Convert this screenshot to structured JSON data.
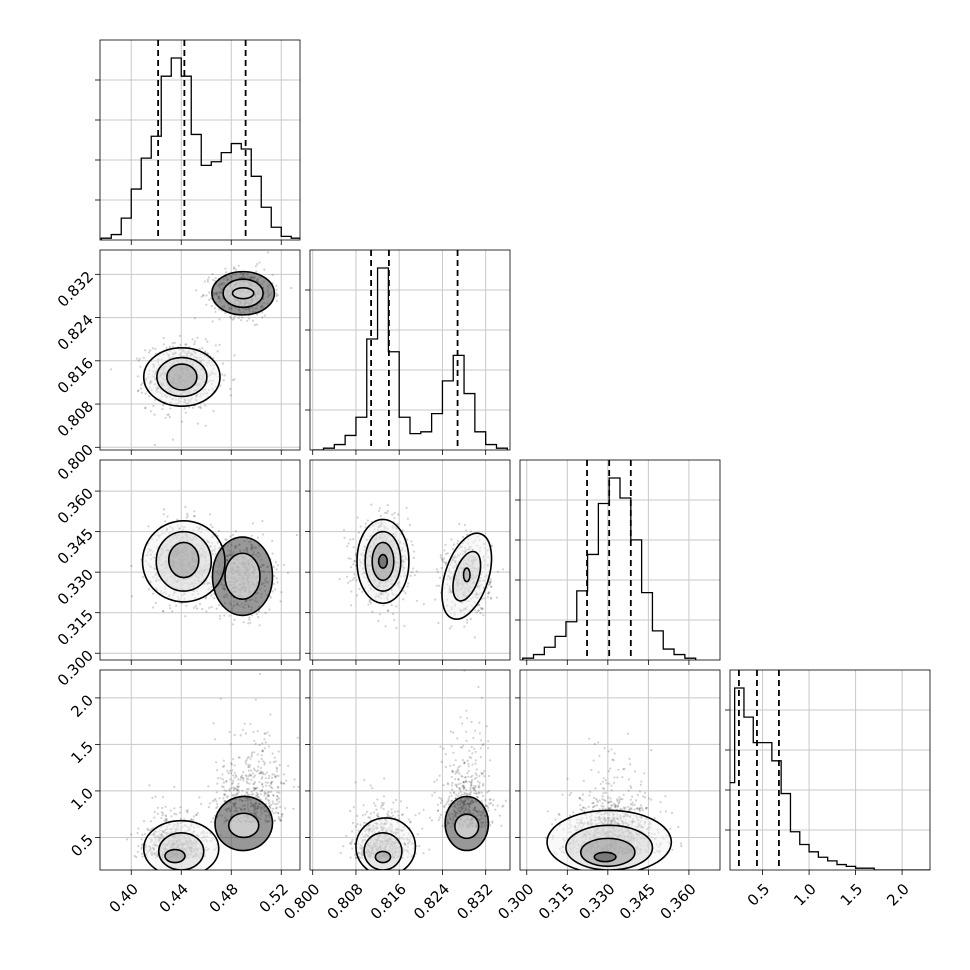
{
  "chart_data": {
    "type": "corner",
    "grid": true,
    "parameters": [
      {
        "key": "p0",
        "range": [
          0.375,
          0.535
        ],
        "ticks": [
          0.4,
          0.44,
          0.48,
          0.52
        ],
        "tick_labels": [
          "0.40",
          "0.44",
          "0.48",
          "0.52"
        ]
      },
      {
        "key": "p1",
        "range": [
          0.7995,
          0.8365
        ],
        "ticks": [
          0.8,
          0.808,
          0.816,
          0.824,
          0.832
        ],
        "tick_labels": [
          "0.800",
          "0.808",
          "0.816",
          "0.824",
          "0.832"
        ]
      },
      {
        "key": "p2",
        "range": [
          0.2975,
          0.3715
        ],
        "ticks": [
          0.3,
          0.315,
          0.33,
          0.345,
          0.36
        ],
        "tick_labels": [
          "0.300",
          "0.315",
          "0.330",
          "0.345",
          "0.360"
        ]
      },
      {
        "key": "p3",
        "range": [
          0.15,
          2.3
        ],
        "ticks": [
          0.5,
          1.0,
          1.5,
          2.0
        ],
        "tick_labels": [
          "0.5",
          "1.0",
          "1.5",
          "2.0"
        ]
      }
    ],
    "diagonal": [
      {
        "param": 0,
        "hist_x": [
          0.38,
          0.388,
          0.396,
          0.404,
          0.412,
          0.42,
          0.428,
          0.436,
          0.444,
          0.452,
          0.46,
          0.468,
          0.476,
          0.484,
          0.492,
          0.5,
          0.508,
          0.516,
          0.524,
          0.532
        ],
        "hist_y": [
          1,
          3,
          12,
          28,
          45,
          57,
          90,
          100,
          90,
          58,
          41,
          43,
          48,
          53,
          50,
          35,
          18,
          7,
          2,
          1
        ],
        "quantiles": [
          0.4215,
          0.4425,
          0.4915
        ]
      },
      {
        "param": 1,
        "hist_x": [
          0.801,
          0.803,
          0.805,
          0.807,
          0.809,
          0.811,
          0.813,
          0.815,
          0.817,
          0.819,
          0.821,
          0.823,
          0.825,
          0.827,
          0.829,
          0.831,
          0.833,
          0.835
        ],
        "hist_y": [
          0,
          1,
          3,
          8,
          18,
          61,
          100,
          54,
          18,
          9,
          10,
          20,
          38,
          52,
          31,
          10,
          3,
          1
        ],
        "quantiles": [
          0.8108,
          0.8141,
          0.8268
        ]
      },
      {
        "param": 2,
        "hist_x": [
          0.3005,
          0.3045,
          0.3085,
          0.3125,
          0.3165,
          0.3205,
          0.3245,
          0.3285,
          0.3325,
          0.3365,
          0.3405,
          0.3445,
          0.3485,
          0.3525,
          0.3565,
          0.3605
        ],
        "hist_y": [
          1,
          3,
          7,
          13,
          21,
          38,
          58,
          86,
          100,
          89,
          66,
          37,
          16,
          6,
          3,
          1
        ],
        "quantiles": [
          0.3223,
          0.3305,
          0.3385
        ]
      },
      {
        "param": 3,
        "hist_x": [
          0.15,
          0.25,
          0.35,
          0.45,
          0.55,
          0.65,
          0.75,
          0.85,
          0.95,
          1.05,
          1.15,
          1.25,
          1.35,
          1.45,
          1.55,
          1.65,
          1.75,
          1.85,
          1.95,
          2.05,
          2.15,
          2.25
        ],
        "hist_y": [
          48,
          100,
          84,
          70,
          70,
          60,
          42,
          21,
          14,
          10,
          7,
          5,
          3,
          2,
          1,
          1,
          0,
          0,
          0,
          0,
          0,
          0
        ],
        "quantiles": [
          0.246,
          0.44,
          0.676
        ]
      }
    ],
    "pairs": [
      {
        "x_param": 0,
        "y_param": 1,
        "modes": [
          {
            "cx": 0.4405,
            "cy": 0.813,
            "sx": 0.014,
            "sy": 0.003,
            "w": 0.6
          },
          {
            "cx": 0.4895,
            "cy": 0.8285,
            "sx": 0.012,
            "sy": 0.0022,
            "w": 0.4
          }
        ],
        "contours": [
          {
            "cx": 0.4405,
            "cy": 0.813,
            "rx": 0.0305,
            "ry": 0.0054
          },
          {
            "cx": 0.4405,
            "cy": 0.813,
            "rx": 0.02,
            "ry": 0.0036
          },
          {
            "cx": 0.4405,
            "cy": 0.813,
            "rx": 0.012,
            "ry": 0.0024
          },
          {
            "cx": 0.4895,
            "cy": 0.8285,
            "rx": 0.025,
            "ry": 0.004
          },
          {
            "cx": 0.4895,
            "cy": 0.8285,
            "rx": 0.016,
            "ry": 0.0026
          },
          {
            "cx": 0.4895,
            "cy": 0.8285,
            "rx": 0.0085,
            "ry": 0.001
          }
        ]
      },
      {
        "x_param": 0,
        "y_param": 2,
        "modes": [
          {
            "cx": 0.442,
            "cy": 0.334,
            "sx": 0.014,
            "sy": 0.007,
            "w": 0.6
          },
          {
            "cx": 0.489,
            "cy": 0.3285,
            "sx": 0.012,
            "sy": 0.007,
            "w": 0.4
          }
        ],
        "contours": [
          {
            "cx": 0.442,
            "cy": 0.334,
            "rx": 0.033,
            "ry": 0.015
          },
          {
            "cx": 0.442,
            "cy": 0.334,
            "rx": 0.022,
            "ry": 0.011
          },
          {
            "cx": 0.442,
            "cy": 0.3345,
            "rx": 0.012,
            "ry": 0.0065
          },
          {
            "cx": 0.489,
            "cy": 0.3285,
            "rx": 0.024,
            "ry": 0.0145
          },
          {
            "cx": 0.489,
            "cy": 0.3285,
            "rx": 0.014,
            "ry": 0.0085
          }
        ]
      },
      {
        "x_param": 1,
        "y_param": 2,
        "modes": [
          {
            "cx": 0.813,
            "cy": 0.334,
            "sx": 0.0024,
            "sy": 0.007,
            "w": 0.6
          },
          {
            "cx": 0.8285,
            "cy": 0.3285,
            "sx": 0.0022,
            "sy": 0.007,
            "w": 0.4
          }
        ],
        "contours": [
          {
            "cx": 0.813,
            "cy": 0.334,
            "rx": 0.0048,
            "ry": 0.0155
          },
          {
            "cx": 0.813,
            "cy": 0.334,
            "rx": 0.0033,
            "ry": 0.011
          },
          {
            "cx": 0.813,
            "cy": 0.334,
            "rx": 0.002,
            "ry": 0.007
          },
          {
            "cx": 0.813,
            "cy": 0.334,
            "rx": 0.0008,
            "ry": 0.0025
          },
          {
            "cx": 0.8285,
            "cy": 0.3285,
            "rx": 0.004,
            "ry": 0.0165,
            "rotate": 18
          },
          {
            "cx": 0.8285,
            "cy": 0.3285,
            "rx": 0.0022,
            "ry": 0.0095,
            "rotate": 18
          },
          {
            "cx": 0.8285,
            "cy": 0.329,
            "rx": 0.0006,
            "ry": 0.0025
          }
        ]
      },
      {
        "x_param": 0,
        "y_param": 3,
        "modes": [
          {
            "cx": 0.435,
            "cy": 0.35,
            "sx": 0.012,
            "sy": 0.18,
            "w": 0.6
          },
          {
            "cx": 0.495,
            "cy": 0.8,
            "sx": 0.015,
            "sy": 0.35,
            "w": 0.4
          }
        ],
        "contours": [
          {
            "cx": 0.44,
            "cy": 0.38,
            "rx": 0.03,
            "ry": 0.3
          },
          {
            "cx": 0.44,
            "cy": 0.35,
            "rx": 0.018,
            "ry": 0.2
          },
          {
            "cx": 0.435,
            "cy": 0.3,
            "rx": 0.008,
            "ry": 0.07
          },
          {
            "cx": 0.49,
            "cy": 0.65,
            "rx": 0.023,
            "ry": 0.29,
            "rotate": -10
          },
          {
            "cx": 0.49,
            "cy": 0.63,
            "rx": 0.012,
            "ry": 0.13
          }
        ]
      },
      {
        "x_param": 1,
        "y_param": 3,
        "modes": [
          {
            "cx": 0.813,
            "cy": 0.35,
            "sx": 0.0026,
            "sy": 0.18,
            "w": 0.6
          },
          {
            "cx": 0.8285,
            "cy": 0.75,
            "sx": 0.0024,
            "sy": 0.35,
            "w": 0.4
          }
        ],
        "contours": [
          {
            "cx": 0.8135,
            "cy": 0.4,
            "rx": 0.0055,
            "ry": 0.31
          },
          {
            "cx": 0.813,
            "cy": 0.35,
            "rx": 0.0035,
            "ry": 0.2
          },
          {
            "cx": 0.813,
            "cy": 0.29,
            "rx": 0.0014,
            "ry": 0.06
          },
          {
            "cx": 0.8285,
            "cy": 0.65,
            "rx": 0.004,
            "ry": 0.29
          },
          {
            "cx": 0.8285,
            "cy": 0.62,
            "rx": 0.0022,
            "ry": 0.13
          }
        ]
      },
      {
        "x_param": 2,
        "y_param": 3,
        "modes": [
          {
            "cx": 0.331,
            "cy": 0.42,
            "sx": 0.008,
            "sy": 0.26,
            "w": 1.0
          }
        ],
        "contours": [
          {
            "cx": 0.3305,
            "cy": 0.45,
            "rx": 0.023,
            "ry": 0.34
          },
          {
            "cx": 0.3305,
            "cy": 0.39,
            "rx": 0.016,
            "ry": 0.24
          },
          {
            "cx": 0.33,
            "cy": 0.34,
            "rx": 0.01,
            "ry": 0.15
          },
          {
            "cx": 0.329,
            "cy": 0.29,
            "rx": 0.004,
            "ry": 0.05
          }
        ]
      }
    ]
  }
}
